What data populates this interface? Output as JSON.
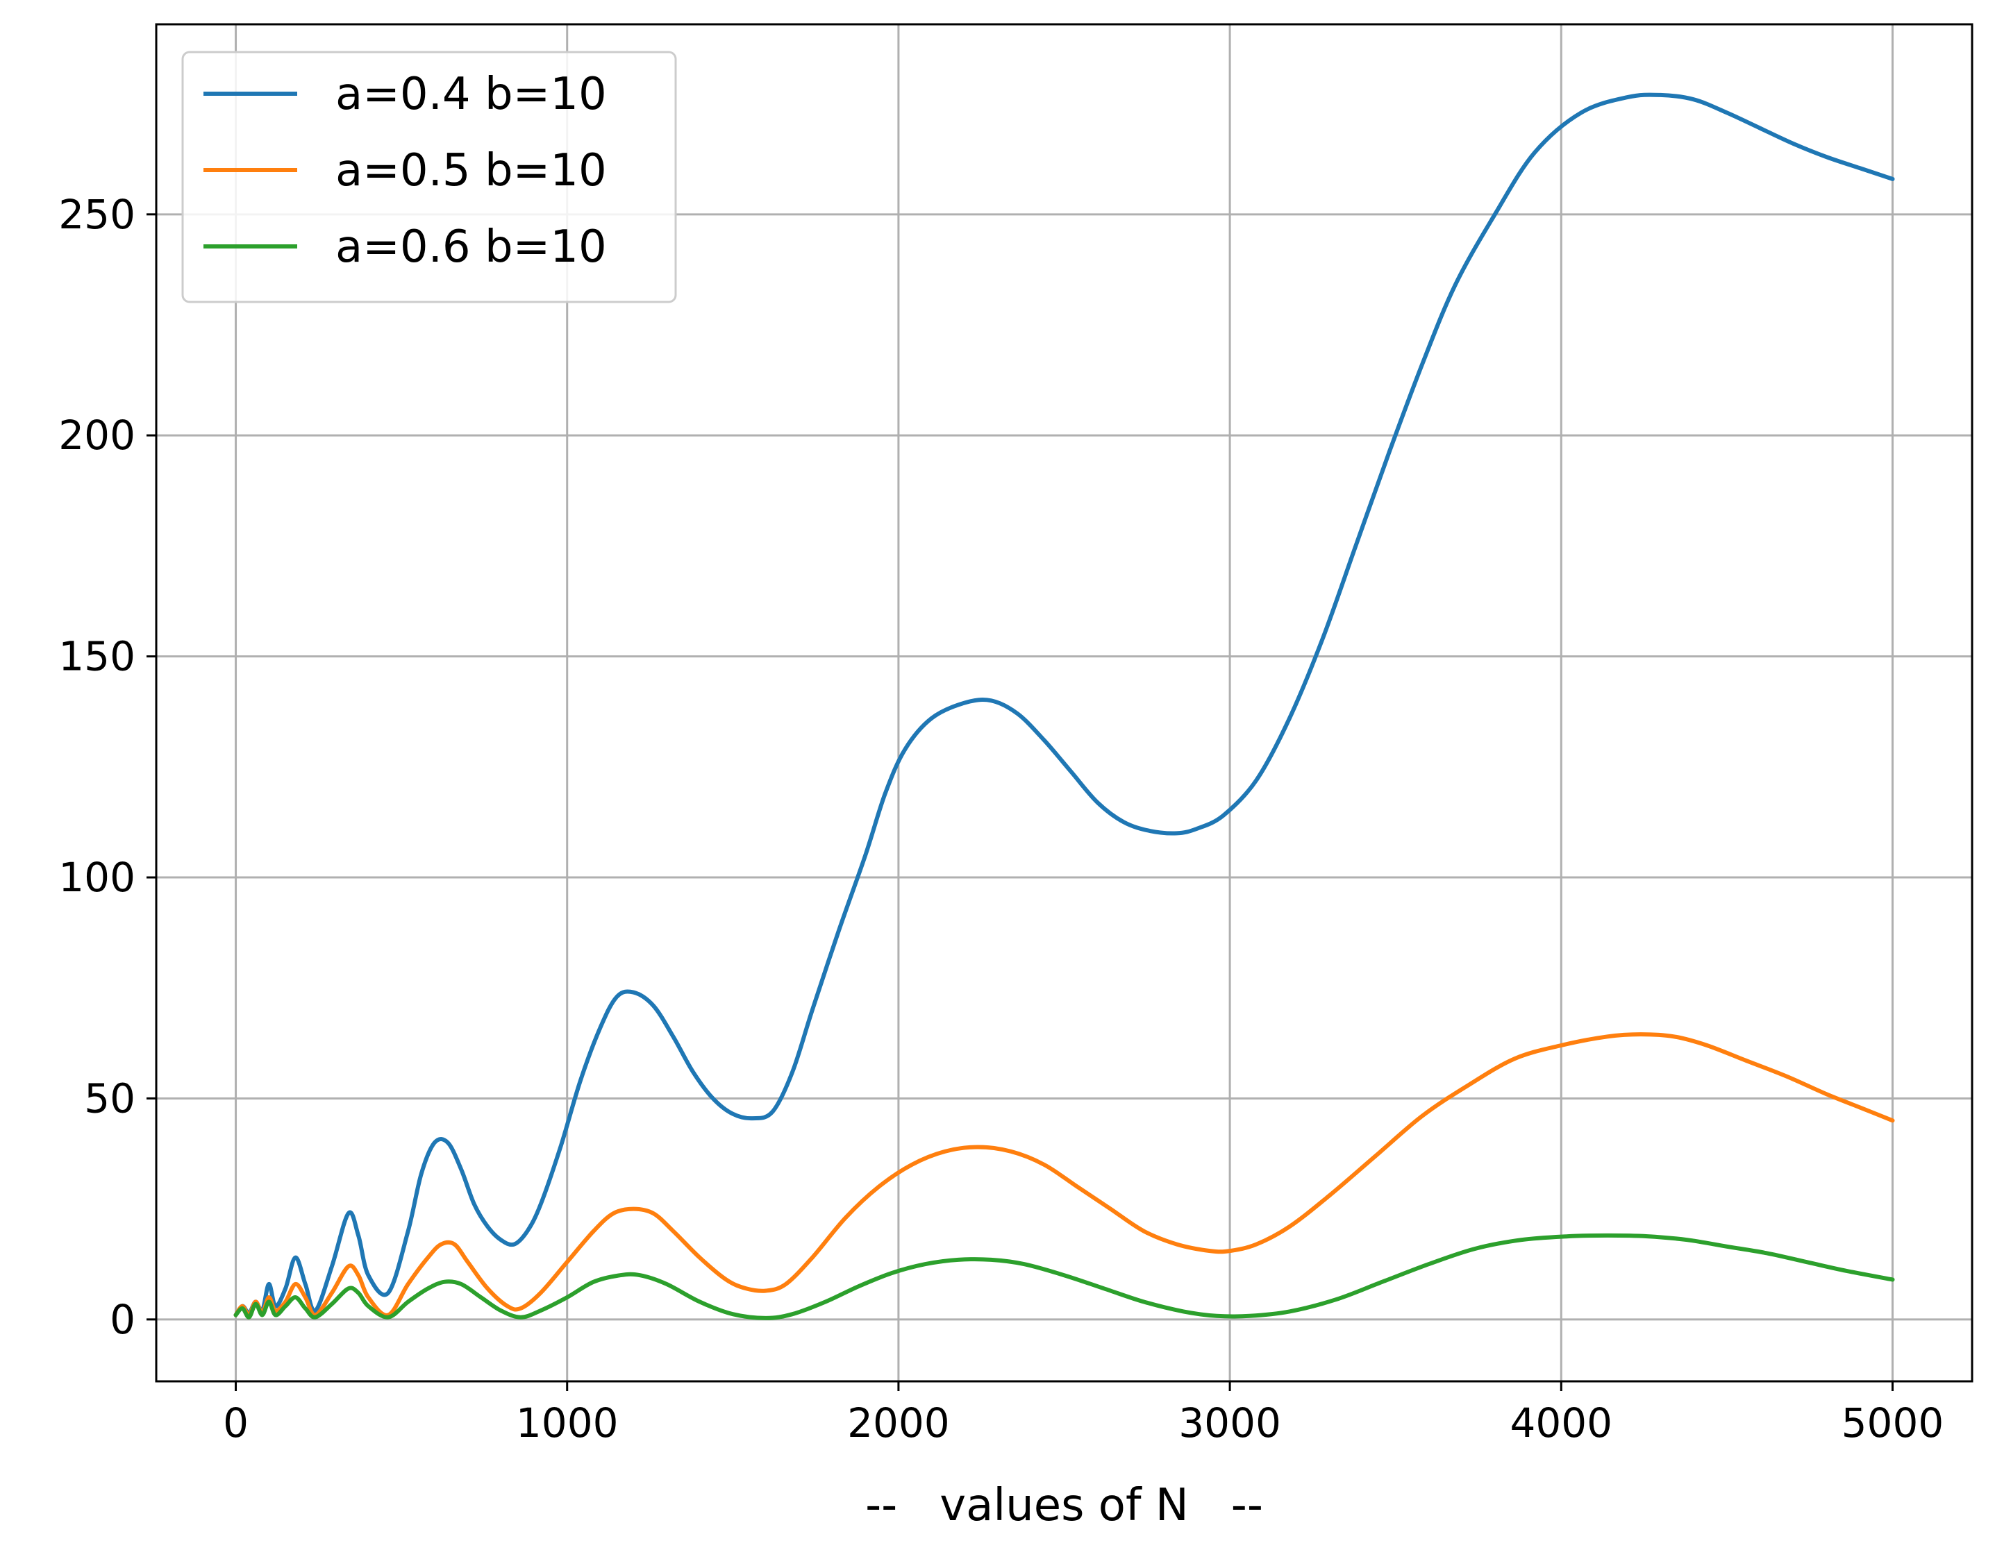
{
  "chart_data": {
    "type": "line",
    "title": "",
    "xlabel": "--   values of N   --",
    "ylabel": "",
    "xlim": [
      -240,
      5240
    ],
    "ylim": [
      -14,
      293
    ],
    "xticks": [
      0,
      1000,
      2000,
      3000,
      4000,
      5000
    ],
    "yticks": [
      0,
      50,
      100,
      150,
      200,
      250
    ],
    "grid": true,
    "legend_position": "top-left",
    "series": [
      {
        "name": "a=0.4 b=10",
        "color": "#1f77b4",
        "points": [
          [
            0,
            1
          ],
          [
            20,
            3
          ],
          [
            40,
            1.5
          ],
          [
            60,
            4
          ],
          [
            80,
            2
          ],
          [
            100,
            8
          ],
          [
            120,
            3
          ],
          [
            150,
            7
          ],
          [
            180,
            14
          ],
          [
            210,
            8
          ],
          [
            240,
            2
          ],
          [
            290,
            12
          ],
          [
            340,
            24
          ],
          [
            370,
            19
          ],
          [
            400,
            10
          ],
          [
            460,
            6
          ],
          [
            520,
            20
          ],
          [
            560,
            33
          ],
          [
            600,
            40
          ],
          [
            640,
            40
          ],
          [
            680,
            34
          ],
          [
            720,
            26
          ],
          [
            760,
            21
          ],
          [
            800,
            18
          ],
          [
            840,
            17
          ],
          [
            880,
            20
          ],
          [
            920,
            26
          ],
          [
            980,
            39
          ],
          [
            1040,
            54
          ],
          [
            1100,
            66
          ],
          [
            1150,
            73
          ],
          [
            1200,
            74
          ],
          [
            1260,
            71
          ],
          [
            1320,
            64
          ],
          [
            1380,
            56
          ],
          [
            1440,
            50
          ],
          [
            1500,
            46.5
          ],
          [
            1560,
            45.5
          ],
          [
            1620,
            47
          ],
          [
            1680,
            56
          ],
          [
            1740,
            70
          ],
          [
            1820,
            88
          ],
          [
            1900,
            105
          ],
          [
            1960,
            119
          ],
          [
            2020,
            129
          ],
          [
            2100,
            136
          ],
          [
            2200,
            139.5
          ],
          [
            2280,
            140
          ],
          [
            2360,
            137
          ],
          [
            2440,
            131
          ],
          [
            2520,
            124
          ],
          [
            2600,
            117
          ],
          [
            2680,
            112.5
          ],
          [
            2760,
            110.5
          ],
          [
            2840,
            110
          ],
          [
            2900,
            111
          ],
          [
            2980,
            114
          ],
          [
            3080,
            122
          ],
          [
            3180,
            136
          ],
          [
            3280,
            154
          ],
          [
            3380,
            175
          ],
          [
            3480,
            196
          ],
          [
            3580,
            216
          ],
          [
            3680,
            234
          ],
          [
            3800,
            250
          ],
          [
            3920,
            264
          ],
          [
            4060,
            273
          ],
          [
            4200,
            276.5
          ],
          [
            4300,
            277
          ],
          [
            4400,
            276
          ],
          [
            4500,
            273
          ],
          [
            4600,
            269.5
          ],
          [
            4700,
            266
          ],
          [
            4800,
            263
          ],
          [
            4900,
            260.5
          ],
          [
            5000,
            258
          ]
        ]
      },
      {
        "name": "a=0.5 b=10",
        "color": "#ff7f0e",
        "points": [
          [
            0,
            1
          ],
          [
            20,
            3
          ],
          [
            40,
            1
          ],
          [
            60,
            4
          ],
          [
            80,
            1.5
          ],
          [
            100,
            5
          ],
          [
            120,
            2
          ],
          [
            150,
            4
          ],
          [
            180,
            8
          ],
          [
            210,
            5
          ],
          [
            240,
            1
          ],
          [
            290,
            6
          ],
          [
            340,
            12
          ],
          [
            370,
            10
          ],
          [
            400,
            5
          ],
          [
            460,
            1
          ],
          [
            520,
            8
          ],
          [
            580,
            14
          ],
          [
            620,
            17
          ],
          [
            660,
            17
          ],
          [
            700,
            13
          ],
          [
            760,
            7
          ],
          [
            820,
            3
          ],
          [
            860,
            2.5
          ],
          [
            920,
            6
          ],
          [
            1000,
            13
          ],
          [
            1080,
            20
          ],
          [
            1140,
            24
          ],
          [
            1200,
            25
          ],
          [
            1260,
            24
          ],
          [
            1320,
            20
          ],
          [
            1400,
            14
          ],
          [
            1480,
            9
          ],
          [
            1540,
            7
          ],
          [
            1600,
            6.5
          ],
          [
            1660,
            8
          ],
          [
            1740,
            14
          ],
          [
            1840,
            23
          ],
          [
            1940,
            30
          ],
          [
            2040,
            35
          ],
          [
            2140,
            38
          ],
          [
            2240,
            39
          ],
          [
            2340,
            38
          ],
          [
            2440,
            35
          ],
          [
            2540,
            30
          ],
          [
            2640,
            25
          ],
          [
            2740,
            20
          ],
          [
            2840,
            17
          ],
          [
            2940,
            15.5
          ],
          [
            3000,
            15.5
          ],
          [
            3080,
            17
          ],
          [
            3180,
            21
          ],
          [
            3300,
            28
          ],
          [
            3440,
            37
          ],
          [
            3580,
            46
          ],
          [
            3720,
            53
          ],
          [
            3860,
            59
          ],
          [
            4000,
            62
          ],
          [
            4140,
            64
          ],
          [
            4240,
            64.5
          ],
          [
            4340,
            64
          ],
          [
            4440,
            62
          ],
          [
            4560,
            58.5
          ],
          [
            4680,
            55
          ],
          [
            4800,
            51
          ],
          [
            4900,
            48
          ],
          [
            5000,
            45
          ]
        ]
      },
      {
        "name": "a=0.6 b=10",
        "color": "#2ca02c",
        "points": [
          [
            0,
            1
          ],
          [
            20,
            2.5
          ],
          [
            40,
            0.5
          ],
          [
            60,
            3.5
          ],
          [
            80,
            1
          ],
          [
            100,
            4
          ],
          [
            120,
            1
          ],
          [
            150,
            3
          ],
          [
            180,
            5
          ],
          [
            210,
            2.5
          ],
          [
            240,
            0.5
          ],
          [
            290,
            3.5
          ],
          [
            340,
            7
          ],
          [
            370,
            6
          ],
          [
            400,
            3
          ],
          [
            460,
            0.5
          ],
          [
            520,
            4
          ],
          [
            580,
            7
          ],
          [
            630,
            8.5
          ],
          [
            680,
            8
          ],
          [
            740,
            5
          ],
          [
            800,
            2
          ],
          [
            860,
            0.5
          ],
          [
            920,
            2
          ],
          [
            1000,
            5
          ],
          [
            1080,
            8.5
          ],
          [
            1160,
            10
          ],
          [
            1220,
            10
          ],
          [
            1300,
            8
          ],
          [
            1400,
            4
          ],
          [
            1500,
            1.2
          ],
          [
            1600,
            0.3
          ],
          [
            1680,
            1.2
          ],
          [
            1780,
            4
          ],
          [
            1880,
            7.5
          ],
          [
            1980,
            10.5
          ],
          [
            2080,
            12.5
          ],
          [
            2180,
            13.5
          ],
          [
            2280,
            13.5
          ],
          [
            2380,
            12.5
          ],
          [
            2500,
            10
          ],
          [
            2620,
            7
          ],
          [
            2740,
            4
          ],
          [
            2860,
            1.8
          ],
          [
            2960,
            0.8
          ],
          [
            3060,
            0.8
          ],
          [
            3180,
            1.8
          ],
          [
            3320,
            4.5
          ],
          [
            3460,
            8.5
          ],
          [
            3600,
            12.5
          ],
          [
            3740,
            16
          ],
          [
            3880,
            18
          ],
          [
            4020,
            18.8
          ],
          [
            4140,
            19
          ],
          [
            4260,
            18.8
          ],
          [
            4380,
            18
          ],
          [
            4500,
            16.5
          ],
          [
            4620,
            15
          ],
          [
            4740,
            13
          ],
          [
            4860,
            11
          ],
          [
            5000,
            9
          ]
        ]
      }
    ]
  }
}
